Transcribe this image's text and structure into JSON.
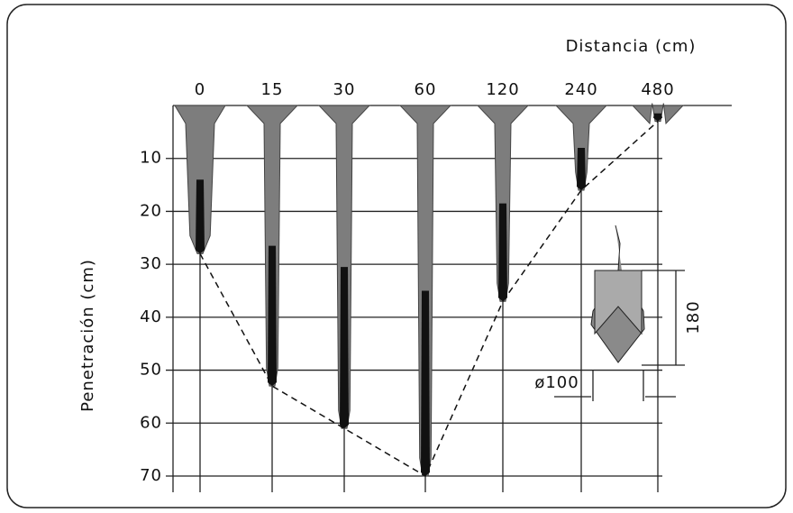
{
  "chart": {
    "x_title": "Distancia  (cm)",
    "y_title": "Penetración  (cm)",
    "distances": [
      "0",
      "15",
      "30",
      "60",
      "120",
      "240",
      "480"
    ],
    "depths": [
      28,
      53,
      61,
      70,
      37,
      16,
      3
    ],
    "yticks": [
      10,
      20,
      30,
      40,
      50,
      60,
      70
    ],
    "ylim": [
      0,
      70
    ]
  },
  "inset": {
    "height_label": "180",
    "diameter_label": "ø100"
  }
}
